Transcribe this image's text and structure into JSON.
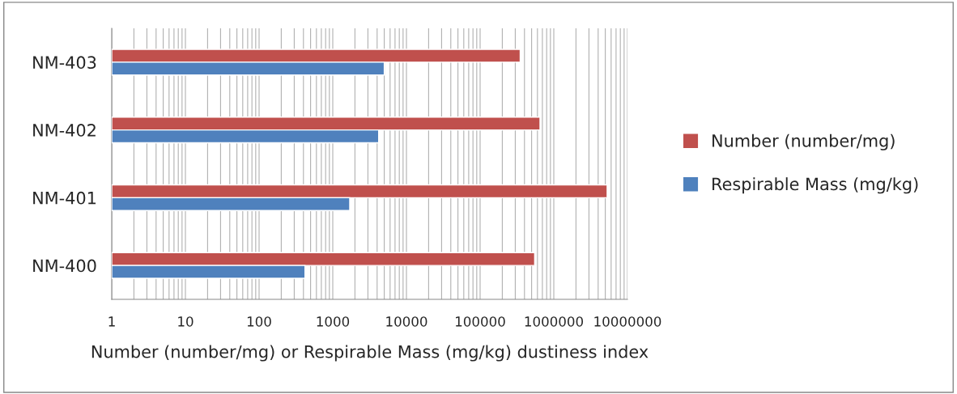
{
  "chart_data": {
    "type": "bar",
    "orientation": "horizontal",
    "xlabel": "Number (number/mg) or Respirable Mass (mg/kg) dustiness index",
    "categories": [
      "NM-403",
      "NM-402",
      "NM-401",
      "NM-400"
    ],
    "series": [
      {
        "name": "Number (number/mg)",
        "color": "#c0504d",
        "values": [
          350000,
          650000,
          5300000,
          550000
        ]
      },
      {
        "name": "Respirable Mass (mg/kg)",
        "color": "#4f81bd",
        "values": [
          5000,
          4200,
          1700,
          420
        ]
      }
    ],
    "log": "x",
    "xlim": [
      1,
      10000000
    ],
    "xticks": [
      1,
      10,
      100,
      1000,
      10000,
      100000,
      1000000,
      10000000
    ],
    "grid": "x",
    "legend": "right"
  }
}
